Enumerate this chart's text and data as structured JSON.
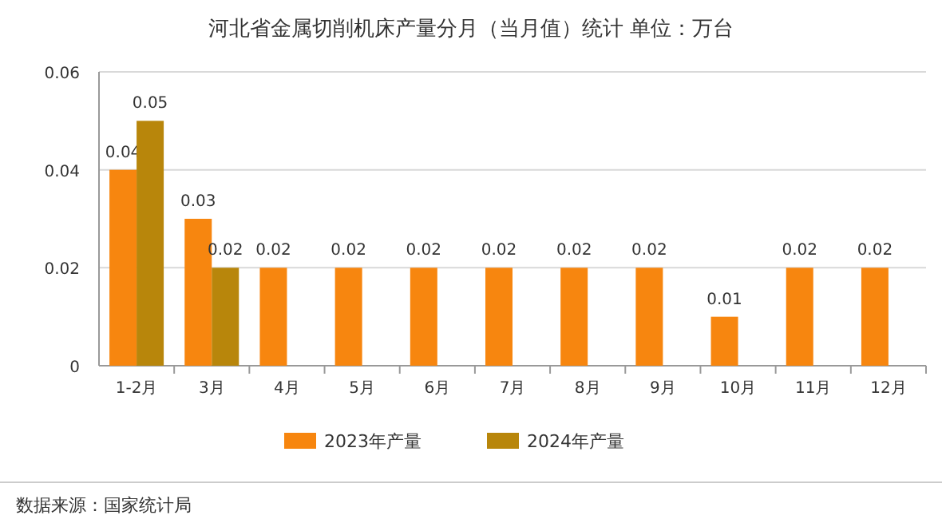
{
  "chart_data": {
    "type": "bar",
    "title": "河北省金属切削机床产量分月（当月值）统计 单位：万台",
    "categories": [
      "1-2月",
      "3月",
      "4月",
      "5月",
      "6月",
      "7月",
      "8月",
      "9月",
      "10月",
      "11月",
      "12月"
    ],
    "series": [
      {
        "name": "2023年产量",
        "color": "#f7860f",
        "values": [
          0.04,
          0.03,
          0.02,
          0.02,
          0.02,
          0.02,
          0.02,
          0.02,
          0.01,
          0.02,
          0.02
        ]
      },
      {
        "name": "2024年产量",
        "color": "#b8860b",
        "values": [
          0.05,
          0.02,
          null,
          null,
          null,
          null,
          null,
          null,
          null,
          null,
          null
        ]
      }
    ],
    "ylim": [
      0,
      0.06
    ],
    "yticks": [
      0,
      0.02,
      0.04,
      0.06
    ],
    "grid": "y",
    "legend": "bottom",
    "data_labels": true,
    "annotations": [
      "数据来源：国家统计局"
    ]
  }
}
